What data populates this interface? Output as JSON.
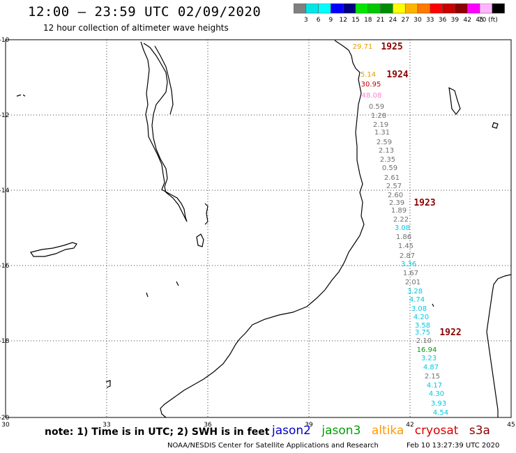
{
  "header": {
    "title": "12:00 – 23:59 UTC 02/09/2020",
    "subtitle": "12 hour collection of altimeter wave heights"
  },
  "colorbar": {
    "colors": [
      "#808080",
      "#00e6e6",
      "#00ffff",
      "#0000ff",
      "#00007f",
      "#00e600",
      "#00c800",
      "#008c00",
      "#ffff00",
      "#ffb400",
      "#ff7800",
      "#ff0000",
      "#c80000",
      "#8b0000",
      "#ff00ff",
      "#ffb4ff",
      "#000000"
    ],
    "labels": [
      "3",
      "6",
      "9",
      "12",
      "15",
      "18",
      "21",
      "24",
      "27",
      "30",
      "33",
      "36",
      "39",
      "42",
      "45",
      "70 (ft)"
    ]
  },
  "map": {
    "lon_labels": [
      "30",
      "33",
      "36",
      "39",
      "42",
      "45"
    ],
    "lat_labels": [
      "-10",
      "-12",
      "-14",
      "-16",
      "-18",
      "-20"
    ],
    "track_labels": [
      "1925",
      "1924",
      "1923",
      "1922"
    ],
    "wave_labels": [
      {
        "text": "29.71",
        "color": "#e0a000"
      },
      {
        "text": "5.14",
        "color": "#e0a000"
      },
      {
        "text": "30.95",
        "color": "#c00000"
      },
      {
        "text": "48.08",
        "color": "#ff80d0"
      },
      {
        "text": "0.59",
        "color": "#707070"
      },
      {
        "text": "1.28",
        "color": "#707070"
      },
      {
        "text": "2.19",
        "color": "#707070"
      },
      {
        "text": "1.31",
        "color": "#707070"
      },
      {
        "text": "2.59",
        "color": "#707070"
      },
      {
        "text": "2.13",
        "color": "#707070"
      },
      {
        "text": "2.35",
        "color": "#707070"
      },
      {
        "text": "0.59",
        "color": "#707070"
      },
      {
        "text": "2.61",
        "color": "#707070"
      },
      {
        "text": "2.57",
        "color": "#707070"
      },
      {
        "text": "2.60",
        "color": "#707070"
      },
      {
        "text": "2.39",
        "color": "#707070"
      },
      {
        "text": "1.89",
        "color": "#707070"
      },
      {
        "text": "2.22",
        "color": "#707070"
      },
      {
        "text": "3.08",
        "color": "#00c8e0"
      },
      {
        "text": "1.86",
        "color": "#707070"
      },
      {
        "text": "1.45",
        "color": "#707070"
      },
      {
        "text": "2.87",
        "color": "#707070"
      },
      {
        "text": "3.36",
        "color": "#00c8e0"
      },
      {
        "text": "1.67",
        "color": "#707070"
      },
      {
        "text": "2.01",
        "color": "#707070"
      },
      {
        "text": "3.28",
        "color": "#00c8e0"
      },
      {
        "text": "4.74",
        "color": "#00c8e0"
      },
      {
        "text": "3.08",
        "color": "#00c8e0"
      },
      {
        "text": "4.20",
        "color": "#00c8e0"
      },
      {
        "text": "3.58",
        "color": "#00c8e0"
      },
      {
        "text": "3.75",
        "color": "#00c8e0"
      },
      {
        "text": "2.10",
        "color": "#707070"
      },
      {
        "text": "16.94",
        "color": "#00a000"
      },
      {
        "text": "3.23",
        "color": "#00c8e0"
      },
      {
        "text": "4.87",
        "color": "#00c8e0"
      },
      {
        "text": "2.15",
        "color": "#707070"
      },
      {
        "text": "4.17",
        "color": "#00c8e0"
      },
      {
        "text": "4.30",
        "color": "#00c8e0"
      },
      {
        "text": "3.93",
        "color": "#00c8e0"
      },
      {
        "text": "4.54",
        "color": "#00c8e0"
      }
    ]
  },
  "footer": {
    "note": "note: 1) Time is in UTC; 2) SWH is in feet",
    "legend": [
      {
        "text": "jason2",
        "color": "#0000cc"
      },
      {
        "text": "jason3",
        "color": "#00a000"
      },
      {
        "text": "altika",
        "color": "#ff9900"
      },
      {
        "text": "cryosat",
        "color": "#dd0000"
      },
      {
        "text": "s3a",
        "color": "#8b0000"
      }
    ],
    "credit": "NOAA/NESDIS Center for Satellite Applications and Research",
    "timestamp": "Feb 10 13:27:39 UTC 2020"
  }
}
